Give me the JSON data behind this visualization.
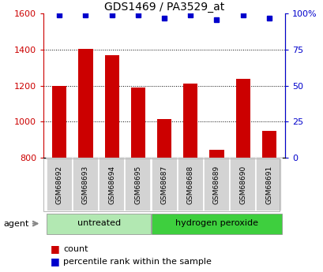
{
  "title": "GDS1469 / PA3529_at",
  "samples": [
    "GSM68692",
    "GSM68693",
    "GSM68694",
    "GSM68695",
    "GSM68687",
    "GSM68688",
    "GSM68689",
    "GSM68690",
    "GSM68691"
  ],
  "counts": [
    1200,
    1405,
    1370,
    1190,
    1015,
    1210,
    845,
    1240,
    950
  ],
  "percentiles": [
    99,
    99,
    99,
    99,
    97,
    99,
    96,
    99,
    97
  ],
  "ylim_left": [
    800,
    1600
  ],
  "ylim_right": [
    0,
    100
  ],
  "yticks_left": [
    800,
    1000,
    1200,
    1400,
    1600
  ],
  "yticks_right": [
    0,
    25,
    50,
    75,
    100
  ],
  "grid_values": [
    1000,
    1200,
    1400
  ],
  "bar_color": "#cc0000",
  "dot_color": "#0000cc",
  "bg_color": "#ffffff",
  "untreated_indices": [
    0,
    1,
    2,
    3
  ],
  "peroxide_indices": [
    4,
    5,
    6,
    7,
    8
  ],
  "untreated_label": "untreated",
  "peroxide_label": "hydrogen peroxide",
  "agent_label": "agent",
  "legend_count": "count",
  "legend_percentile": "percentile rank within the sample",
  "cell_bg": "#d3d3d3",
  "untreated_bg": "#b2e8b2",
  "peroxide_bg": "#3ecf3e"
}
